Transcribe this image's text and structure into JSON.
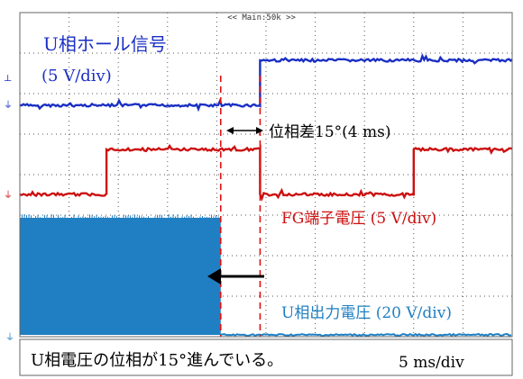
{
  "scope_header": "<< Main:50k >>",
  "annotations": {
    "u_hall_label": "U相ホール信号",
    "u_hall_scale": "(5 V/div)",
    "phase_diff": "位相差15°(4 ms)",
    "fg_label": "FG端子電圧 (5 V/div)",
    "u_out_label": "U相出力電圧 (20 V/div)",
    "caption": "U相電圧の位相が15°進んでいる。",
    "timebase": "5 ms/div"
  },
  "colors": {
    "u_hall": "#1a2fc4",
    "fg": "#cc1010",
    "u_out": "#1f7fc2",
    "grid": "#555555"
  },
  "chart_data": {
    "type": "line",
    "title": "",
    "xlabel": "5 ms/div",
    "x_unit": "ms",
    "xlim": [
      0,
      50
    ],
    "x_divisions": 10,
    "series": [
      {
        "name": "U相ホール信号 (5 V/div)",
        "kind": "step",
        "x_transitions_ms": [
          24.4
        ],
        "levels_div": [
          0.0,
          1.0
        ],
        "starts_low": true
      },
      {
        "name": "FG端子電圧 (5 V/div)",
        "kind": "step",
        "x_transitions_ms": [
          8.8,
          24.4,
          40.0
        ],
        "levels_div": [
          0.0,
          1.0
        ],
        "starts_low": true
      },
      {
        "name": "U相出力電圧 (20 V/div)",
        "kind": "pwm_burst",
        "on_range_ms": [
          0,
          20.4
        ],
        "amplitude_div": 2.6
      }
    ],
    "markers": [
      {
        "type": "vline",
        "x_ms": 20.4
      },
      {
        "type": "vline",
        "x_ms": 24.4
      }
    ],
    "phase_difference": {
      "degrees": 15,
      "ms": 4
    }
  }
}
